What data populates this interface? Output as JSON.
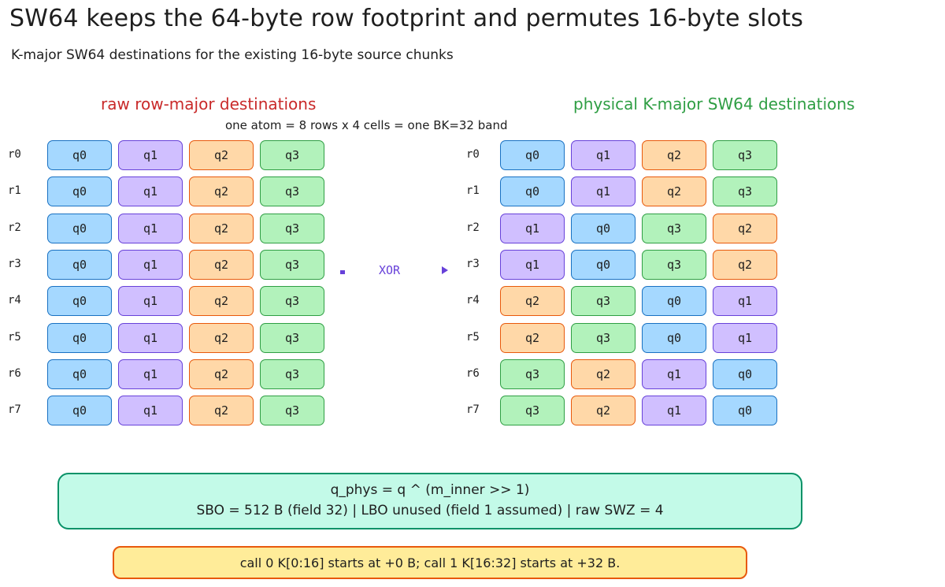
{
  "title": "SW64 keeps the 64-byte row footprint and permutes 16-byte slots",
  "subtitle": "K-major SW64 destinations for the existing 16-byte source chunks",
  "left_grid": {
    "heading": "raw row-major destinations",
    "rows": [
      {
        "label": "r0",
        "cells": [
          "q0",
          "q1",
          "q2",
          "q3"
        ]
      },
      {
        "label": "r1",
        "cells": [
          "q0",
          "q1",
          "q2",
          "q3"
        ]
      },
      {
        "label": "r2",
        "cells": [
          "q0",
          "q1",
          "q2",
          "q3"
        ]
      },
      {
        "label": "r3",
        "cells": [
          "q0",
          "q1",
          "q2",
          "q3"
        ]
      },
      {
        "label": "r4",
        "cells": [
          "q0",
          "q1",
          "q2",
          "q3"
        ]
      },
      {
        "label": "r5",
        "cells": [
          "q0",
          "q1",
          "q2",
          "q3"
        ]
      },
      {
        "label": "r6",
        "cells": [
          "q0",
          "q1",
          "q2",
          "q3"
        ]
      },
      {
        "label": "r7",
        "cells": [
          "q0",
          "q1",
          "q2",
          "q3"
        ]
      }
    ]
  },
  "atom_note": "one atom = 8 rows x 4 cells = one BK=32 band",
  "right_grid": {
    "heading": "physical K-major SW64 destinations",
    "rows": [
      {
        "label": "r0",
        "cells": [
          "q0",
          "q1",
          "q2",
          "q3"
        ]
      },
      {
        "label": "r1",
        "cells": [
          "q0",
          "q1",
          "q2",
          "q3"
        ]
      },
      {
        "label": "r2",
        "cells": [
          "q1",
          "q0",
          "q3",
          "q2"
        ]
      },
      {
        "label": "r3",
        "cells": [
          "q1",
          "q0",
          "q3",
          "q2"
        ]
      },
      {
        "label": "r4",
        "cells": [
          "q2",
          "q3",
          "q0",
          "q1"
        ]
      },
      {
        "label": "r5",
        "cells": [
          "q2",
          "q3",
          "q0",
          "q1"
        ]
      },
      {
        "label": "r6",
        "cells": [
          "q3",
          "q2",
          "q1",
          "q0"
        ]
      },
      {
        "label": "r7",
        "cells": [
          "q3",
          "q2",
          "q1",
          "q0"
        ]
      }
    ]
  },
  "xor_label": "XOR",
  "colors": {
    "q0": "#a5d8ff",
    "q1": "#d0bfff",
    "q2": "#ffd8a8",
    "q3": "#b2f2bb"
  },
  "formula": {
    "line1": "q_phys = q ^ (m_inner >> 1)",
    "line2": "SBO = 512 B (field 32)  |  LBO unused (field 1 assumed)  |  raw SWZ = 4"
  },
  "call_note": "call 0 K[0:16] starts at +0 B; call 1 K[16:32] starts at +32 B."
}
